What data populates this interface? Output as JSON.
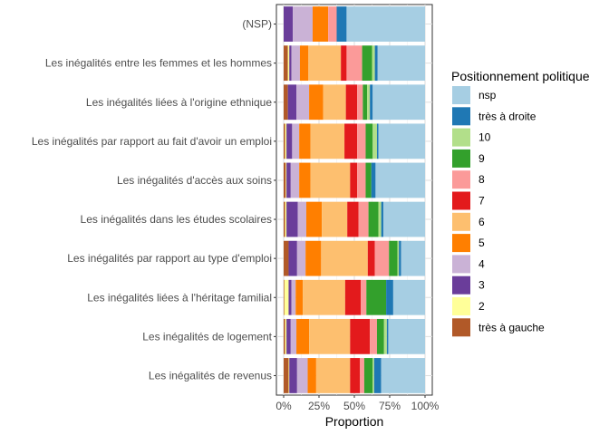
{
  "chart_data": {
    "type": "bar",
    "orientation": "horizontal",
    "stacked": true,
    "xlabel": "Proportion",
    "ylabel": "",
    "xlim": [
      0,
      1
    ],
    "x_ticks": [
      "0%",
      "25%",
      "50%",
      "75%",
      "100%"
    ],
    "grid": true,
    "legend_title": "Positionnement politique",
    "legend_position": "right",
    "categories": [
      "(NSP)",
      "Les inégalités entre les femmes et les hommes",
      "Les inégalités liées à l'origine ethnique",
      "Les inégalités par rapport au fait d'avoir un emploi",
      "Les inégalités d'accès aux soins",
      "Les inégalités dans les études scolaires",
      "Les inégalités par rapport au type d'emploi",
      "Les inégalités liées à l'héritage familial",
      "Les inégalités de logement",
      "Les inégalités de revenus"
    ],
    "series": [
      {
        "name": "très à gauche",
        "color": "#b15928",
        "values": [
          0.0,
          0.03,
          0.03,
          0.01,
          0.015,
          0.01,
          0.035,
          0.005,
          0.01,
          0.035
        ]
      },
      {
        "name": "2",
        "color": "#ffff99",
        "values": [
          0.0,
          0.01,
          0.0,
          0.01,
          0.005,
          0.01,
          0.0,
          0.03,
          0.01,
          0.005
        ]
      },
      {
        "name": "3",
        "color": "#6a3d9a",
        "values": [
          0.065,
          0.015,
          0.06,
          0.04,
          0.03,
          0.08,
          0.06,
          0.02,
          0.03,
          0.055
        ]
      },
      {
        "name": "4",
        "color": "#cab2d6",
        "values": [
          0.14,
          0.06,
          0.09,
          0.05,
          0.06,
          0.06,
          0.06,
          0.03,
          0.04,
          0.075
        ]
      },
      {
        "name": "5",
        "color": "#ff7f00",
        "values": [
          0.11,
          0.06,
          0.1,
          0.08,
          0.08,
          0.11,
          0.11,
          0.05,
          0.09,
          0.06
        ]
      },
      {
        "name": "6",
        "color": "#fdbf6f",
        "values": [
          0.0,
          0.23,
          0.16,
          0.24,
          0.28,
          0.18,
          0.33,
          0.3,
          0.29,
          0.24
        ]
      },
      {
        "name": "7",
        "color": "#e31a1c",
        "values": [
          0.0,
          0.04,
          0.08,
          0.09,
          0.05,
          0.08,
          0.05,
          0.11,
          0.14,
          0.07
        ]
      },
      {
        "name": "8",
        "color": "#fb9a99",
        "values": [
          0.06,
          0.11,
          0.04,
          0.06,
          0.06,
          0.07,
          0.1,
          0.04,
          0.05,
          0.03
        ]
      },
      {
        "name": "9",
        "color": "#33a02c",
        "values": [
          0.0,
          0.07,
          0.03,
          0.05,
          0.04,
          0.07,
          0.06,
          0.14,
          0.05,
          0.06
        ]
      },
      {
        "name": "10",
        "color": "#b2df8a",
        "values": [
          0.0,
          0.02,
          0.02,
          0.03,
          0.0,
          0.02,
          0.01,
          0.0,
          0.02,
          0.01
        ]
      },
      {
        "name": "très à droite",
        "color": "#1f78b4",
        "values": [
          0.07,
          0.02,
          0.02,
          0.01,
          0.03,
          0.015,
          0.015,
          0.05,
          0.01,
          0.05
        ]
      },
      {
        "name": "nsp",
        "color": "#a6cee3",
        "values": [
          0.555,
          0.335,
          0.37,
          0.33,
          0.35,
          0.295,
          0.17,
          0.225,
          0.26,
          0.31
        ]
      }
    ],
    "legend_order": [
      "nsp",
      "très à droite",
      "10",
      "9",
      "8",
      "7",
      "6",
      "5",
      "4",
      "3",
      "2",
      "très à gauche"
    ]
  }
}
